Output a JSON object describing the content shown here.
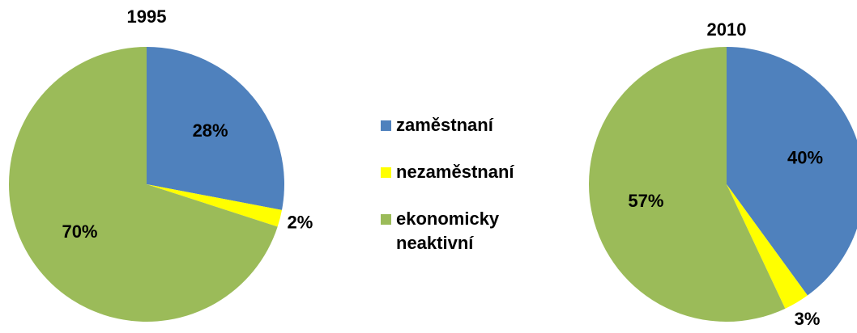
{
  "chart_data": [
    {
      "type": "pie",
      "title": "1995",
      "categories": [
        "zaměstnaní",
        "nezaměstnaní",
        "ekonomicky neaktivní"
      ],
      "values": [
        28,
        2,
        70
      ],
      "value_labels": [
        "28%",
        "2%",
        "70%"
      ],
      "colors": [
        "#4f81bd",
        "#ffff00",
        "#9bbb59"
      ],
      "legend": "center"
    },
    {
      "type": "pie",
      "title": "2010",
      "categories": [
        "zaměstnaní",
        "nezaměstnaní",
        "ekonomicky neaktivní"
      ],
      "values": [
        40,
        3,
        57
      ],
      "value_labels": [
        "40%",
        "3%",
        "57%"
      ],
      "colors": [
        "#4f81bd",
        "#ffff00",
        "#9bbb59"
      ]
    }
  ]
}
